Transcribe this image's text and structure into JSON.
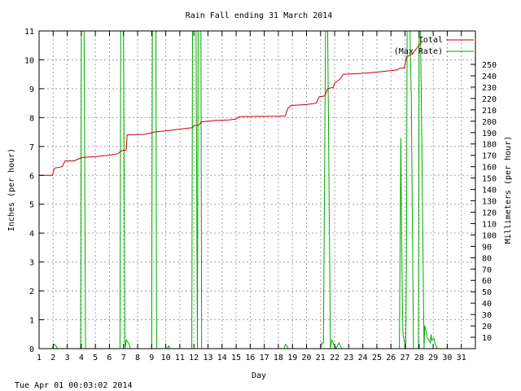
{
  "chart_data": {
    "type": "line",
    "title": "Rain Fall ending 31 March 2014",
    "xlabel": "Day",
    "ylabel_left": "Inches (per hour)",
    "ylabel_right": "Millimeters (per hour)",
    "timestamp": "Tue Apr 01 00:03:02 2014",
    "xlim": [
      1,
      32
    ],
    "ylim_left": [
      0,
      11
    ],
    "ylim_right_mm": [
      0,
      279.4
    ],
    "x_ticks": [
      1,
      2,
      3,
      4,
      5,
      6,
      7,
      8,
      9,
      10,
      11,
      12,
      13,
      14,
      15,
      16,
      17,
      18,
      19,
      20,
      21,
      22,
      23,
      24,
      25,
      26,
      27,
      28,
      29,
      30,
      31
    ],
    "y_ticks_left": [
      0,
      1,
      2,
      3,
      4,
      5,
      6,
      7,
      8,
      9,
      10,
      11
    ],
    "y_ticks_right": [
      10,
      20,
      30,
      40,
      50,
      60,
      70,
      80,
      90,
      100,
      110,
      120,
      130,
      140,
      150,
      160,
      170,
      180,
      190,
      200,
      210,
      220,
      230,
      240,
      250
    ],
    "grid": true,
    "legend_position": "top-right",
    "colors": {
      "total": "#cc0000",
      "max_rate": "#00aa00",
      "grid": "#a0a0a0"
    },
    "series": [
      {
        "name": "Total",
        "axis": "left",
        "x": [
          1,
          1.95,
          2.1,
          2.65,
          2.85,
          3.5,
          3.95,
          4.1,
          5.0,
          6.0,
          6.6,
          6.85,
          7.2,
          7.25,
          8.5,
          9.2,
          10.2,
          11.0,
          11.9,
          12.0,
          12.4,
          12.5,
          13.5,
          14.5,
          15.0,
          15.2,
          16.5,
          18.0,
          18.5,
          18.65,
          18.9,
          20.0,
          20.7,
          20.9,
          21.3,
          21.5,
          21.9,
          22.0,
          22.3,
          22.5,
          22.6,
          23.5,
          24.5,
          25.5,
          26.4,
          26.6,
          26.95,
          27.1,
          27.5,
          28.0,
          28.15,
          28.3
        ],
        "y": [
          6.0,
          6.0,
          6.25,
          6.3,
          6.5,
          6.5,
          6.6,
          6.62,
          6.65,
          6.7,
          6.75,
          6.85,
          6.88,
          7.4,
          7.42,
          7.5,
          7.55,
          7.6,
          7.65,
          7.72,
          7.75,
          7.85,
          7.9,
          7.92,
          7.95,
          8.03,
          8.04,
          8.05,
          8.06,
          8.3,
          8.42,
          8.45,
          8.5,
          8.72,
          8.75,
          9.0,
          9.05,
          9.2,
          9.3,
          9.4,
          9.5,
          9.52,
          9.55,
          9.6,
          9.65,
          9.7,
          9.72,
          10.1,
          10.2,
          10.5,
          10.6,
          10.65
        ]
      },
      {
        "name": "(Max Rate)",
        "axis": "left",
        "x": [
          1,
          1.95,
          2.0,
          2.1,
          2.2,
          2.3,
          3.95,
          4.0,
          4.2,
          4.3,
          6.75,
          6.8,
          7.0,
          7.1,
          7.2,
          7.35,
          7.5,
          9.0,
          9.05,
          9.3,
          9.35,
          10.1,
          10.2,
          10.3,
          11.85,
          11.9,
          12.15,
          12.25,
          12.3,
          12.5,
          12.55,
          18.4,
          18.5,
          18.6,
          18.7,
          21.0,
          21.1,
          21.2,
          21.35,
          21.5,
          21.7,
          21.8,
          21.9,
          22.0,
          22.1,
          22.3,
          22.4,
          22.5,
          26.6,
          26.65,
          26.7,
          26.75,
          26.8,
          26.85,
          27.05,
          27.1,
          27.15,
          27.35,
          27.45,
          27.6,
          27.95,
          28.0,
          28.1,
          28.35,
          28.4,
          28.55,
          28.6,
          28.7,
          28.8,
          28.85,
          28.9,
          29.05,
          29.15,
          29.3
        ],
        "y": [
          0,
          0,
          0.1,
          0.15,
          0.1,
          0,
          0,
          11,
          11,
          0,
          0,
          11,
          11,
          0,
          0.3,
          0.2,
          0,
          0,
          11,
          11,
          0,
          0,
          0.1,
          0,
          0,
          11,
          11,
          0,
          11,
          11,
          0,
          0,
          0.15,
          0.1,
          0,
          0,
          0.2,
          0.2,
          11,
          11,
          0,
          0.3,
          0.2,
          0.1,
          0,
          0.2,
          0.1,
          0,
          0,
          3.5,
          7.3,
          4.3,
          2.0,
          0.5,
          0,
          3.0,
          11,
          11,
          8.6,
          0,
          0,
          11,
          11,
          0,
          0.8,
          0.5,
          0.35,
          0.3,
          0.2,
          0.5,
          0.3,
          0.35,
          0.15,
          0
        ]
      }
    ]
  }
}
